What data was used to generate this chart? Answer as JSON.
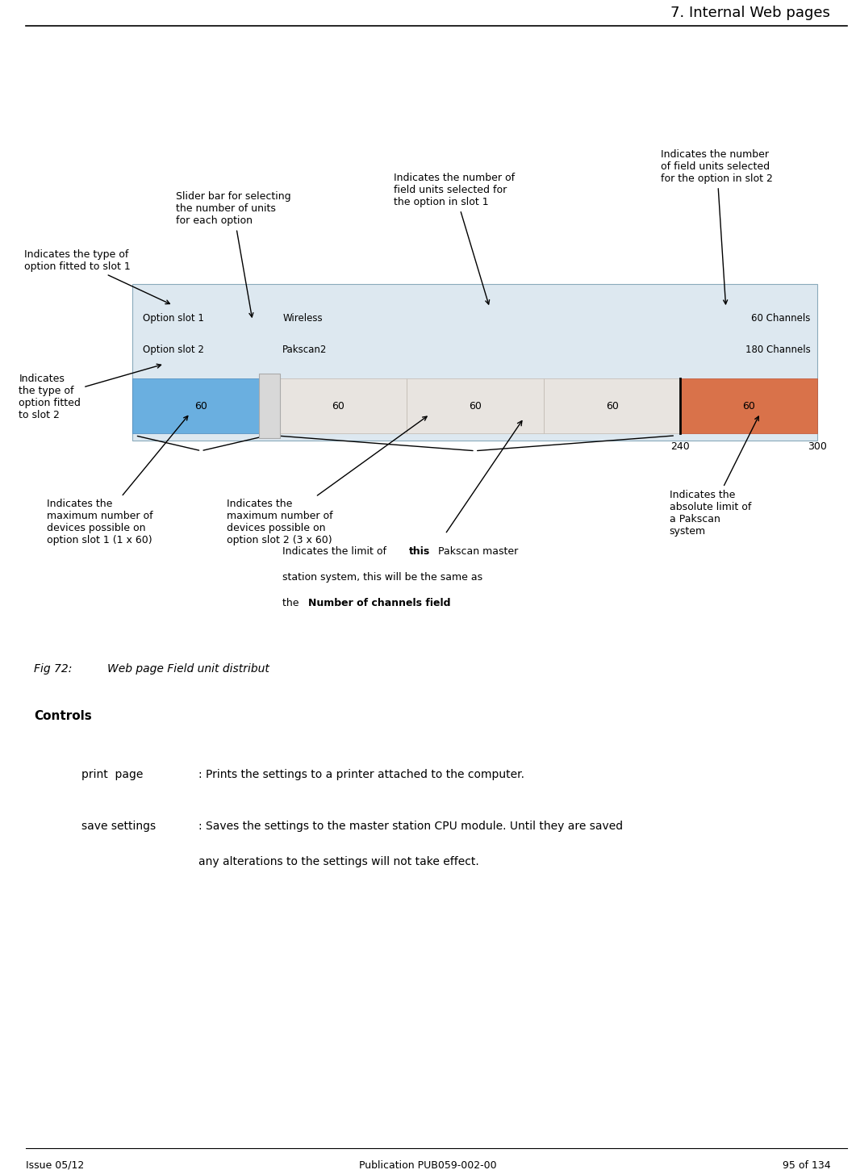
{
  "header_text": "7. Internal Web pages",
  "footer_left": "Issue 05/12",
  "footer_center": "Publication PUB059-002-00",
  "footer_right": "95 of 134",
  "fig_label": "Fig 72:",
  "fig_caption": "Web page Field unit distribut",
  "controls_title": "Controls",
  "print_label": "print  page",
  "print_text": ": Prints the settings to a printer attached to the computer.",
  "save_label": "save settings",
  "save_text1": ": Saves the settings to the master station CPU module. Until they are saved",
  "save_text2": "any alterations to the settings will not take effect.",
  "widget_bg_color": "#dde8f0",
  "widget_border_color": "#8aaabb",
  "slot1_label": "Option slot 1",
  "slot2_label": "Option slot 2",
  "slot1_type": "Wireless",
  "slot2_type": "Pakscan2",
  "slot1_channels": "60 Channels",
  "slot2_channels": "180 Channels",
  "bar_blue_color": "#6aafe0",
  "bar_orange_color": "#d9724a",
  "bar_beige_color": "#e8e4e0",
  "slider_color": "#d8d8d8",
  "tick_240": "240",
  "tick_300": "300",
  "ann_slider_text": "Slider bar for selecting\nthe number of units\nfor each option",
  "ann_slot1_num_text": "Indicates the number of\nfield units selected for\nthe option in slot 1",
  "ann_slot2_num_text": "Indicates the number\nof field units selected\nfor the option in slot 2",
  "ann_type1_text": "Indicates the type of\noption fitted to slot 1",
  "ann_type2_text": "Indicates\nthe type of\noption fitted\nto slot 2",
  "ann_max1_text": "Indicates the\nmaximum number of\ndevices possible on\noption slot 1 (1 x 60)",
  "ann_max2_text": "Indicates the\nmaximum number of\ndevices possible on\noption slot 2 (3 x 60)",
  "ann_abs_text": "Indicates the\nabsolute limit of\na Pakscan\nsystem",
  "ann_limit_text1": "Indicates the limit of ",
  "ann_limit_bold1": "this",
  "ann_limit_text2": " Pakscan master",
  "ann_limit_line2": "station system, this will be the same as",
  "ann_limit_text3": "the ",
  "ann_limit_bold2": "Number of channels field"
}
